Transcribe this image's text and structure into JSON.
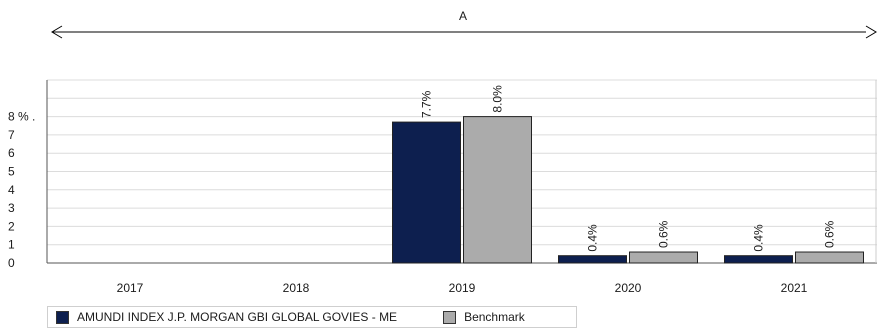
{
  "chart_data": {
    "type": "bar",
    "categories": [
      "2017",
      "2018",
      "2019",
      "2020",
      "2021"
    ],
    "series": [
      {
        "name": "AMUNDI INDEX J.P. MORGAN GBI GLOBAL GOVIES  - ME",
        "color": "#0d1f4f",
        "values": [
          null,
          null,
          7.7,
          0.4,
          0.4
        ],
        "labels": [
          "",
          "",
          "7.7%",
          "0.4%",
          "0.4%"
        ]
      },
      {
        "name": "Benchmark",
        "color": "#ababab",
        "values": [
          null,
          null,
          8.0,
          0.6,
          0.6
        ],
        "labels": [
          "",
          "",
          "8.0%",
          "0.6%",
          "0.6%"
        ]
      }
    ],
    "yticks": [
      "0",
      "1",
      "2",
      "3",
      "4",
      "5",
      "6",
      "7",
      "8 % ."
    ],
    "ylim": [
      0,
      10
    ],
    "grid": true,
    "period_label": "A",
    "legend_position": "bottom-left"
  }
}
